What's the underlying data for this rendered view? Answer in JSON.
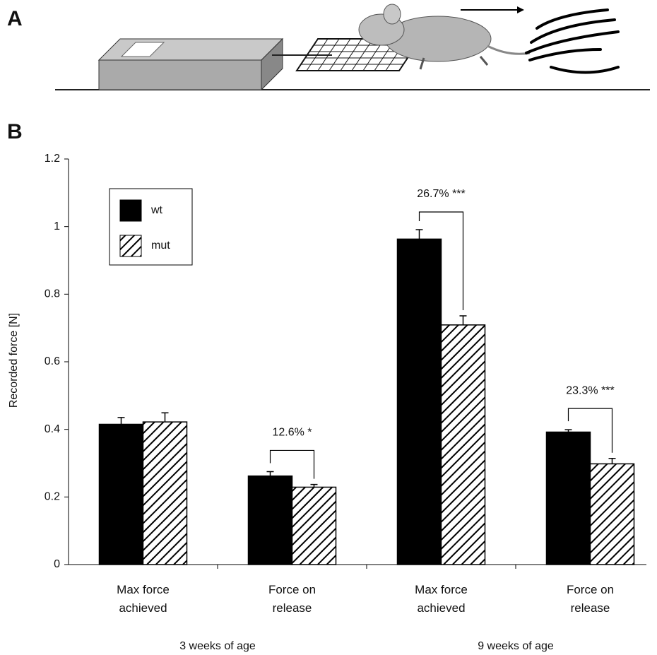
{
  "panel_labels": [
    "A",
    "B"
  ],
  "chart_data": {
    "type": "bar",
    "y_label": "Recorded force [N]",
    "categories": [
      "Max force achieved",
      "Force on release",
      "Max force achieved",
      "Force on release"
    ],
    "groups": [
      "3 weeks of age",
      "9 weeks of age"
    ],
    "series": [
      {
        "name": "wt",
        "color": "#000000",
        "fill": "solid",
        "values": [
          0.415,
          0.262,
          0.963,
          0.392
        ],
        "errors": [
          0.02,
          0.013,
          0.028,
          0.007
        ]
      },
      {
        "name": "mut",
        "color": "#000000",
        "fill": "hatch",
        "values": [
          0.422,
          0.229,
          0.709,
          0.298
        ],
        "errors": [
          0.027,
          0.008,
          0.027,
          0.016
        ]
      }
    ],
    "annotations": [
      "12.6% *",
      "26.7% ***",
      "23.3% ***"
    ],
    "ylim": [
      0,
      1.2
    ],
    "yticks": [
      0,
      0.2,
      0.4,
      0.6,
      0.8,
      1,
      1.2
    ],
    "legend": "upper left",
    "grid": false
  }
}
